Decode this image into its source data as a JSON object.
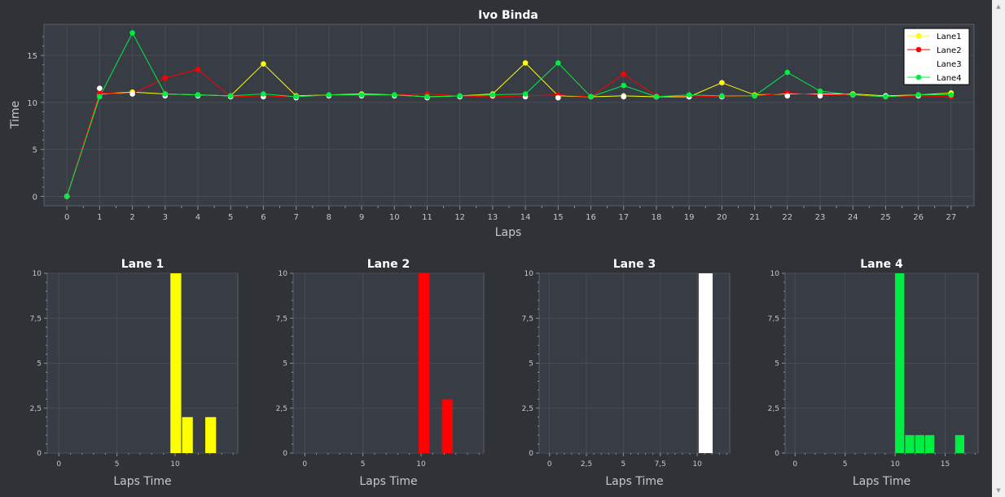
{
  "colors": {
    "background": "#2f3236",
    "plot_bg": "#383c44",
    "grid": "#474c55",
    "text": "#ffffff",
    "axis_text": "#c8c8c8",
    "lane1": "#ffff00",
    "lane2": "#ff0000",
    "lane3": "#ffffff",
    "lane4": "#00ee44"
  },
  "icons": {
    "scroll_up": "triangle-up-icon",
    "scroll_down": "triangle-down-icon"
  },
  "chart_data": [
    {
      "type": "line",
      "title": "Ivo Binda",
      "xlabel": "Laps",
      "ylabel": "Time",
      "xlim": [
        -0.7,
        27.7
      ],
      "ylim": [
        -1,
        18.3
      ],
      "x_ticks": [
        0,
        1,
        2,
        3,
        4,
        5,
        6,
        7,
        8,
        9,
        10,
        11,
        12,
        13,
        14,
        15,
        16,
        17,
        18,
        19,
        20,
        21,
        22,
        23,
        24,
        25,
        26,
        27
      ],
      "y_ticks": [
        0,
        5,
        10,
        15
      ],
      "grid": true,
      "legend": "top-right",
      "x": [
        0,
        1,
        2,
        3,
        4,
        5,
        6,
        7,
        8,
        9,
        10,
        11,
        12,
        13,
        14,
        15,
        16,
        17,
        18,
        19,
        20,
        21,
        22,
        23,
        24,
        25,
        26,
        27
      ],
      "series": [
        {
          "name": "Lane1",
          "color": "#ffff00",
          "marker": true,
          "values": [
            0,
            10.9,
            11.1,
            10.9,
            10.8,
            10.7,
            14.1,
            10.7,
            10.8,
            10.9,
            10.8,
            10.6,
            10.7,
            10.9,
            14.2,
            10.7,
            10.6,
            10.7,
            10.6,
            10.6,
            12.1,
            10.8,
            10.9,
            10.9,
            10.9,
            10.7,
            10.8,
            11.0
          ]
        },
        {
          "name": "Lane2",
          "color": "#ff0000",
          "marker": true,
          "values": [
            0,
            11.0,
            10.9,
            12.6,
            13.5,
            10.6,
            10.7,
            10.6,
            10.8,
            10.7,
            10.8,
            10.9,
            10.7,
            10.6,
            10.7,
            10.8,
            10.6,
            13.0,
            10.7,
            10.7,
            10.6,
            10.7,
            11.0,
            10.8,
            10.8,
            10.6,
            10.7,
            10.6
          ]
        },
        {
          "name": "Lane3",
          "color": "#ffffff",
          "marker": true,
          "line": false,
          "values": [
            0,
            11.5,
            10.9,
            10.7,
            10.7,
            10.6,
            10.6,
            10.5,
            10.7,
            10.7,
            10.7,
            10.5,
            10.6,
            10.7,
            10.6,
            10.5,
            10.6,
            10.6,
            10.6,
            10.6,
            10.6,
            10.7,
            10.7,
            10.7,
            10.8,
            10.7,
            10.7,
            10.8
          ]
        },
        {
          "name": "Lane4",
          "color": "#00ee44",
          "marker": true,
          "values": [
            0,
            10.6,
            17.4,
            10.9,
            10.8,
            10.7,
            10.9,
            10.6,
            10.8,
            10.8,
            10.8,
            10.6,
            10.7,
            10.8,
            10.9,
            14.2,
            10.6,
            11.8,
            10.6,
            10.8,
            10.7,
            10.7,
            13.2,
            11.2,
            10.8,
            10.6,
            10.8,
            10.8
          ]
        }
      ]
    },
    {
      "type": "bar",
      "title": "Lane 1",
      "xlabel": "Laps Time",
      "xlim": [
        -1,
        15.4
      ],
      "ylim": [
        0,
        10
      ],
      "x_ticks": [
        0,
        5,
        10
      ],
      "x_tick_labels": [
        "0",
        "5",
        "10"
      ],
      "y_ticks": [
        0,
        2.5,
        5,
        7.5,
        10
      ],
      "y_tick_labels": [
        "0",
        "2,5",
        "5",
        "7,5",
        "10"
      ],
      "color": "#ffff00",
      "bins": [
        {
          "start": 9.6,
          "end": 10.6,
          "value": 10
        },
        {
          "start": 10.6,
          "end": 11.6,
          "value": 2
        },
        {
          "start": 12.6,
          "end": 13.6,
          "value": 2
        }
      ]
    },
    {
      "type": "bar",
      "title": "Lane 2",
      "xlabel": "Laps Time",
      "xlim": [
        -1,
        15.4
      ],
      "ylim": [
        0,
        10
      ],
      "x_ticks": [
        0,
        5,
        10
      ],
      "x_tick_labels": [
        "0",
        "5",
        "10"
      ],
      "y_ticks": [
        0,
        2.5,
        5,
        7.5,
        10
      ],
      "y_tick_labels": [
        "0",
        "2,5",
        "5",
        "7,5",
        "10"
      ],
      "color": "#ff0000",
      "bins": [
        {
          "start": 9.8,
          "end": 10.8,
          "value": 10
        },
        {
          "start": 11.8,
          "end": 12.8,
          "value": 3
        }
      ]
    },
    {
      "type": "bar",
      "title": "Lane 3",
      "xlabel": "Laps Time",
      "xlim": [
        -0.7,
        12.2
      ],
      "ylim": [
        0,
        10
      ],
      "x_ticks": [
        0,
        2.5,
        5,
        7.5,
        10
      ],
      "x_tick_labels": [
        "0",
        "2,5",
        "5",
        "7,5",
        "10"
      ],
      "y_ticks": [
        0,
        2.5,
        5,
        7.5,
        10
      ],
      "y_tick_labels": [
        "0",
        "2,5",
        "5",
        "7,5",
        "10"
      ],
      "color": "#ffffff",
      "bins": [
        {
          "start": 10.1,
          "end": 11.1,
          "value": 10
        }
      ]
    },
    {
      "type": "bar",
      "title": "Lane 4",
      "xlabel": "Laps Time",
      "xlim": [
        -1,
        18.3
      ],
      "ylim": [
        0,
        10
      ],
      "x_ticks": [
        0,
        5,
        10,
        15
      ],
      "x_tick_labels": [
        "0",
        "5",
        "10",
        "15"
      ],
      "y_ticks": [
        0,
        2.5,
        5,
        7.5,
        10
      ],
      "y_tick_labels": [
        "0",
        "2,5",
        "5",
        "7,5",
        "10"
      ],
      "color": "#00ee44",
      "bins": [
        {
          "start": 10.0,
          "end": 11.0,
          "value": 10
        },
        {
          "start": 11.0,
          "end": 12.0,
          "value": 1
        },
        {
          "start": 12.0,
          "end": 13.0,
          "value": 1
        },
        {
          "start": 13.0,
          "end": 14.0,
          "value": 1
        },
        {
          "start": 16.0,
          "end": 17.0,
          "value": 1
        }
      ]
    }
  ]
}
